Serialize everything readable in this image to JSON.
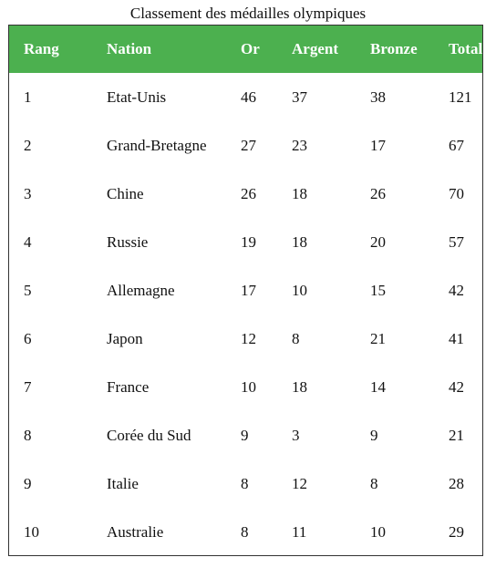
{
  "theme": {
    "header_bg": "#4CB04F",
    "header_text": "#FFFFFF",
    "border": "#333333"
  },
  "caption": "Classement des médailles olympiques",
  "table": {
    "headers": {
      "rank": "Rang",
      "nation": "Nation",
      "gold": "Or",
      "silver": "Argent",
      "bronze": "Bronze",
      "total": "Total"
    },
    "rows": [
      {
        "rank": "1",
        "nation": "Etat-Unis",
        "gold": "46",
        "silver": "37",
        "bronze": "38",
        "total": "121"
      },
      {
        "rank": "2",
        "nation": "Grand-Bretagne",
        "gold": "27",
        "silver": "23",
        "bronze": "17",
        "total": "67"
      },
      {
        "rank": "3",
        "nation": "Chine",
        "gold": "26",
        "silver": "18",
        "bronze": "26",
        "total": "70"
      },
      {
        "rank": "4",
        "nation": "Russie",
        "gold": "19",
        "silver": "18",
        "bronze": "20",
        "total": "57"
      },
      {
        "rank": "5",
        "nation": "Allemagne",
        "gold": "17",
        "silver": "10",
        "bronze": "15",
        "total": "42"
      },
      {
        "rank": "6",
        "nation": "Japon",
        "gold": "12",
        "silver": "8",
        "bronze": "21",
        "total": "41"
      },
      {
        "rank": "7",
        "nation": "France",
        "gold": "10",
        "silver": "18",
        "bronze": "14",
        "total": "42"
      },
      {
        "rank": "8",
        "nation": "Corée du Sud",
        "gold": "9",
        "silver": "3",
        "bronze": "9",
        "total": "21"
      },
      {
        "rank": "9",
        "nation": "Italie",
        "gold": "8",
        "silver": "12",
        "bronze": "8",
        "total": "28"
      },
      {
        "rank": "10",
        "nation": "Australie",
        "gold": "8",
        "silver": "11",
        "bronze": "10",
        "total": "29"
      }
    ]
  }
}
